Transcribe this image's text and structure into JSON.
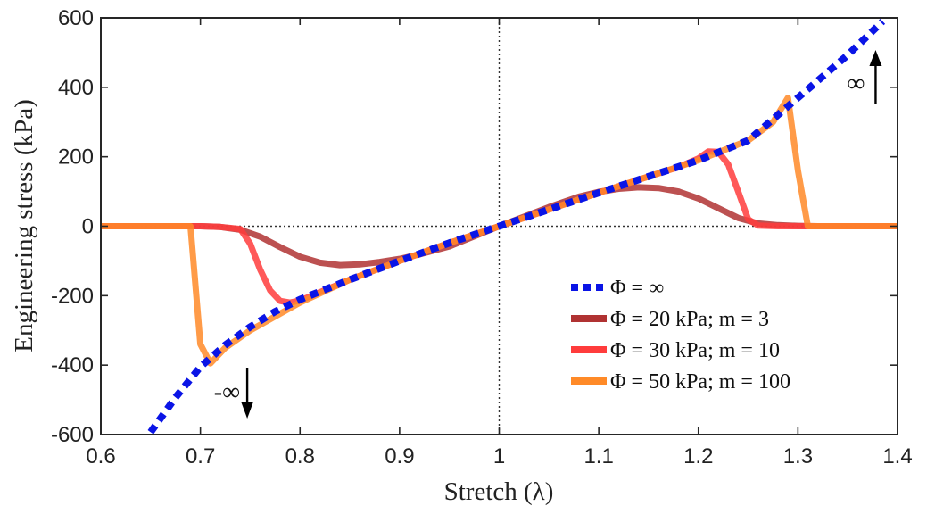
{
  "chart_data": {
    "type": "line",
    "title": "",
    "xlabel": "Stretch (λ)",
    "ylabel": "Engineering stress (kPa)",
    "xlim": [
      0.6,
      1.4
    ],
    "ylim": [
      -600,
      600
    ],
    "xticks": [
      "0.6",
      "0.7",
      "0.8",
      "0.9",
      "1",
      "1.1",
      "1.2",
      "1.3",
      "1.4"
    ],
    "yticks": [
      "600",
      "400",
      "200",
      "0",
      "-200",
      "-400",
      "-600"
    ],
    "reference_lines": {
      "x": 1,
      "y": 0
    },
    "legend_position": "lower-right",
    "series": [
      {
        "name": "Φ = ∞",
        "color": "#0a14e6",
        "style": "dotted",
        "x": [
          0.65,
          0.675,
          0.7,
          0.725,
          0.75,
          0.775,
          0.8,
          0.85,
          0.9,
          0.95,
          1.0,
          1.05,
          1.1,
          1.15,
          1.2,
          1.25,
          1.3,
          1.35,
          1.385
        ],
        "y": [
          -593,
          -493,
          -405,
          -342,
          -290,
          -246,
          -211,
          -154,
          -100,
          -48,
          0,
          48,
          96,
          143,
          190,
          247,
          370,
          493,
          590
        ]
      },
      {
        "name": "Φ = 20 kPa; m = 3",
        "color": "#b03232",
        "style": "solid",
        "x": [
          0.6,
          0.7,
          0.72,
          0.74,
          0.76,
          0.78,
          0.8,
          0.82,
          0.84,
          0.86,
          0.88,
          0.9,
          0.92,
          0.95,
          1.0,
          1.05,
          1.08,
          1.1,
          1.12,
          1.14,
          1.16,
          1.18,
          1.2,
          1.22,
          1.24,
          1.26,
          1.28,
          1.3,
          1.32,
          1.4
        ],
        "y": [
          0,
          0,
          -2,
          -10,
          -30,
          -60,
          -88,
          -105,
          -112,
          -110,
          -103,
          -94,
          -81,
          -58,
          0,
          55,
          85,
          99,
          108,
          112,
          110,
          100,
          80,
          52,
          24,
          8,
          3,
          1,
          0,
          0
        ]
      },
      {
        "name": "Φ = 30 kPa; m = 10",
        "color": "#ff3c3c",
        "style": "solid",
        "x": [
          0.6,
          0.7,
          0.72,
          0.74,
          0.75,
          0.76,
          0.77,
          0.78,
          0.79,
          0.8,
          0.85,
          0.9,
          0.95,
          1.0,
          1.05,
          1.1,
          1.15,
          1.18,
          1.2,
          1.21,
          1.22,
          1.23,
          1.24,
          1.25,
          1.26,
          1.28,
          1.4
        ],
        "y": [
          0,
          0,
          -2,
          -8,
          -50,
          -125,
          -185,
          -215,
          -220,
          -214,
          -154,
          -100,
          -48,
          0,
          48,
          96,
          143,
          170,
          195,
          215,
          214,
          178,
          100,
          20,
          2,
          0,
          0
        ]
      },
      {
        "name": "Φ = 50 kPa; m = 100",
        "color": "#ff8a28",
        "style": "solid",
        "x": [
          0.6,
          0.69,
          0.7,
          0.71,
          0.725,
          0.75,
          0.775,
          0.8,
          0.85,
          0.9,
          0.95,
          1.0,
          1.05,
          1.1,
          1.15,
          1.2,
          1.25,
          1.275,
          1.29,
          1.3,
          1.31,
          1.4
        ],
        "y": [
          0,
          0,
          -340,
          -395,
          -350,
          -300,
          -260,
          -220,
          -154,
          -100,
          -48,
          0,
          48,
          96,
          143,
          190,
          247,
          300,
          370,
          160,
          0,
          0
        ]
      }
    ],
    "annotations": [
      {
        "text": "∞",
        "x": 1.36,
        "y": 410,
        "arrow": "up"
      },
      {
        "text": "-∞",
        "x": 0.73,
        "y": -480,
        "arrow": "down"
      }
    ]
  }
}
